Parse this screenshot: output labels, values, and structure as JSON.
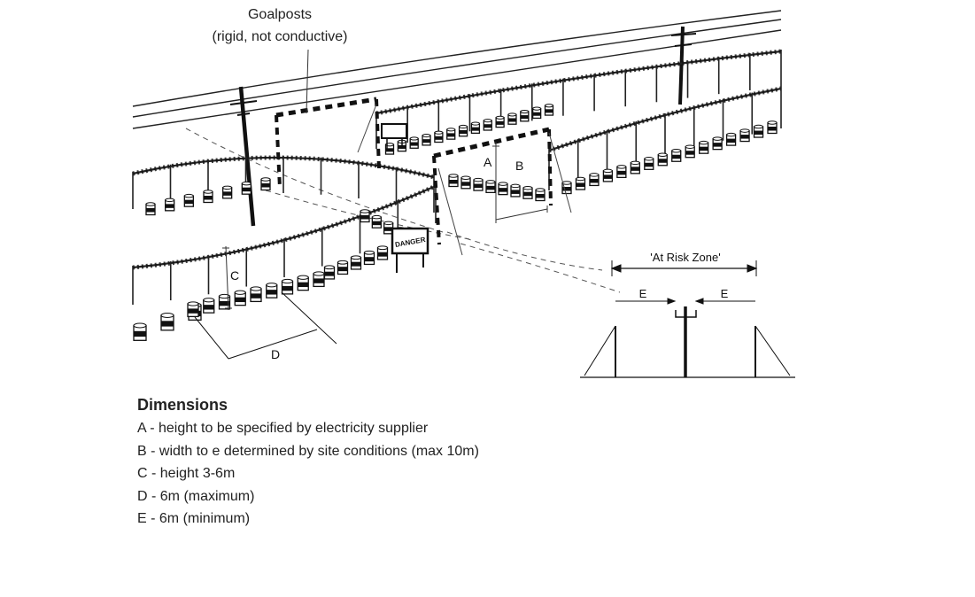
{
  "callout": {
    "line1": "Goalposts",
    "line2": "(rigid, not conductive)"
  },
  "scene_labels": {
    "a": "A",
    "b": "B",
    "c": "C",
    "d": "D",
    "danger_sign": "DANGER"
  },
  "risk_zone": {
    "title": "'At Risk Zone'",
    "e_left": "E",
    "e_right": "E"
  },
  "legend": {
    "title": "Dimensions",
    "items": [
      "A - height to be specified by electricity supplier",
      "B - width to e determined by site conditions (max 10m)",
      "C - height 3-6m",
      "D - 6m (maximum)",
      "E - 6m (minimum)"
    ]
  }
}
